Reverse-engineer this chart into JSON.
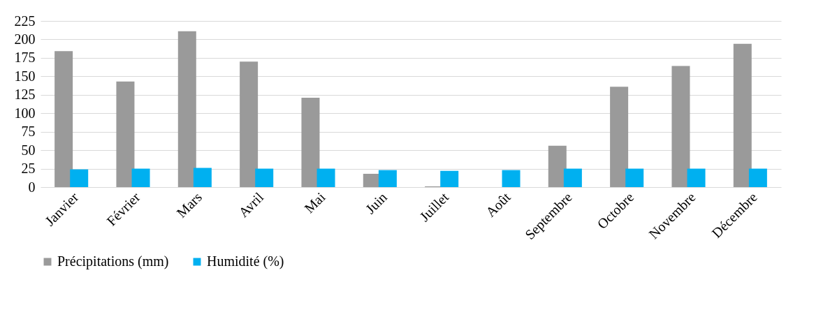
{
  "chart_data": {
    "type": "bar",
    "categories": [
      "Janvier",
      "Février",
      "Mars",
      "Avril",
      "Mai",
      "Juin",
      "Juillet",
      "Août",
      "Septembre",
      "Octobre",
      "Novembre",
      "Décembre"
    ],
    "series": [
      {
        "name": "Précipitations (mm)",
        "color": "#9a9a9a",
        "values": [
          184,
          143,
          211,
          170,
          121,
          18,
          1,
          0,
          56,
          136,
          164,
          194
        ]
      },
      {
        "name": "Humidité (%)",
        "color": "#00b0f0",
        "values": [
          24,
          25,
          26,
          25,
          25,
          23,
          22,
          23,
          25,
          25,
          25,
          25
        ]
      }
    ],
    "ylim": [
      0,
      225
    ],
    "yticks": [
      0,
      25,
      50,
      75,
      100,
      125,
      150,
      175,
      200,
      225
    ],
    "grid": "y",
    "legend": "bottom"
  }
}
